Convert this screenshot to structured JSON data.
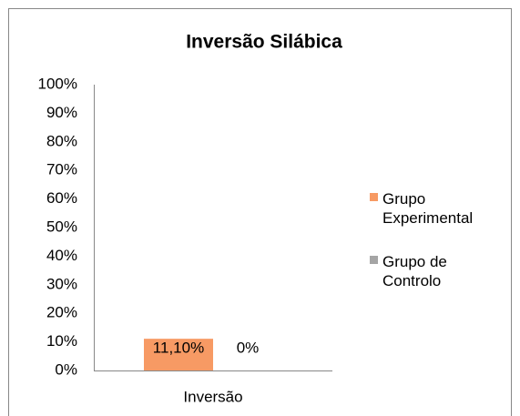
{
  "chart_data": {
    "type": "bar",
    "title": "Inversão Silábica",
    "categories": [
      "Inversão"
    ],
    "series": [
      {
        "name": "Grupo Experimental",
        "color": "#f79a64",
        "values": [
          11.1
        ],
        "value_labels": [
          "11,10%"
        ]
      },
      {
        "name": "Grupo de Controlo",
        "color": "#a5a5a5",
        "values": [
          0
        ],
        "value_labels": [
          "0%"
        ]
      }
    ],
    "ylim": [
      0,
      100
    ],
    "yticks": [
      {
        "value": 0,
        "label": "0%"
      },
      {
        "value": 10,
        "label": "10%"
      },
      {
        "value": 20,
        "label": "20%"
      },
      {
        "value": 30,
        "label": "30%"
      },
      {
        "value": 40,
        "label": "40%"
      },
      {
        "value": 50,
        "label": "50%"
      },
      {
        "value": 60,
        "label": "60%"
      },
      {
        "value": 70,
        "label": "70%"
      },
      {
        "value": 80,
        "label": "80%"
      },
      {
        "value": 90,
        "label": "90%"
      },
      {
        "value": 100,
        "label": "100%"
      }
    ],
    "grid": false,
    "legend": "right"
  }
}
